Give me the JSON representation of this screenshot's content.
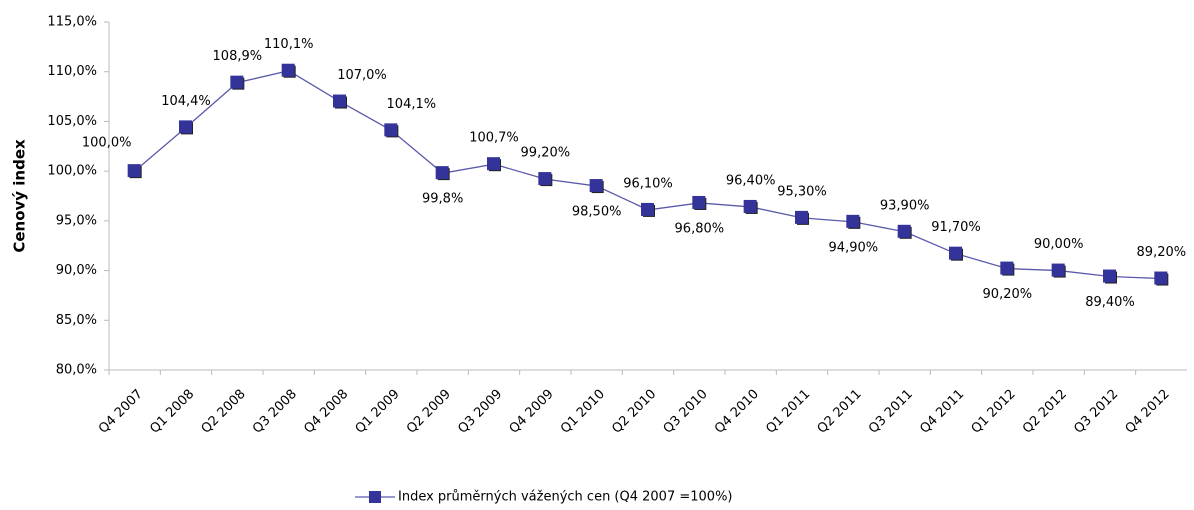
{
  "chart_data": {
    "type": "line",
    "y_axis_label": "Cenový index",
    "categories": [
      "Q4 2007",
      "Q1 2008",
      "Q2 2008",
      "Q3 2008",
      "Q4 2008",
      "Q1 2009",
      "Q2 2009",
      "Q3 2009",
      "Q4 2009",
      "Q1 2010",
      "Q2 2010",
      "Q3 2010",
      "Q4 2010",
      "Q1 2011",
      "Q2 2011",
      "Q3 2011",
      "Q4 2011",
      "Q1 2012",
      "Q2 2012",
      "Q3 2012",
      "Q4 2012"
    ],
    "series": [
      {
        "name": "Index průměrných vážených cen (Q4 2007 =100%)",
        "color": "#333399",
        "values": [
          100.0,
          104.4,
          108.9,
          110.1,
          107.0,
          104.1,
          99.8,
          100.7,
          99.2,
          98.5,
          96.1,
          96.8,
          96.4,
          95.3,
          94.9,
          93.9,
          91.7,
          90.2,
          90.0,
          89.4,
          89.2
        ],
        "value_labels": [
          "100,0%",
          "104,4%",
          "108,9%",
          "110,1%",
          "107,0%",
          "104,1%",
          "99,8%",
          "100,7%",
          "99,20%",
          "98,50%",
          "96,10%",
          "96,80%",
          "96,40%",
          "95,30%",
          "94,90%",
          "93,90%",
          "91,70%",
          "90,20%",
          "90,00%",
          "89,40%",
          "89,20%"
        ]
      }
    ],
    "ylim": [
      80,
      115
    ],
    "yticks": [
      {
        "value": 80,
        "label": "80,0%"
      },
      {
        "value": 85,
        "label": "85,0%"
      },
      {
        "value": 90,
        "label": "90,0%"
      },
      {
        "value": 95,
        "label": "95,0%"
      },
      {
        "value": 100,
        "label": "100,0%"
      },
      {
        "value": 105,
        "label": "105,0%"
      },
      {
        "value": 110,
        "label": "110,0%"
      },
      {
        "value": 115,
        "label": "115,0%"
      }
    ],
    "grid": false
  }
}
